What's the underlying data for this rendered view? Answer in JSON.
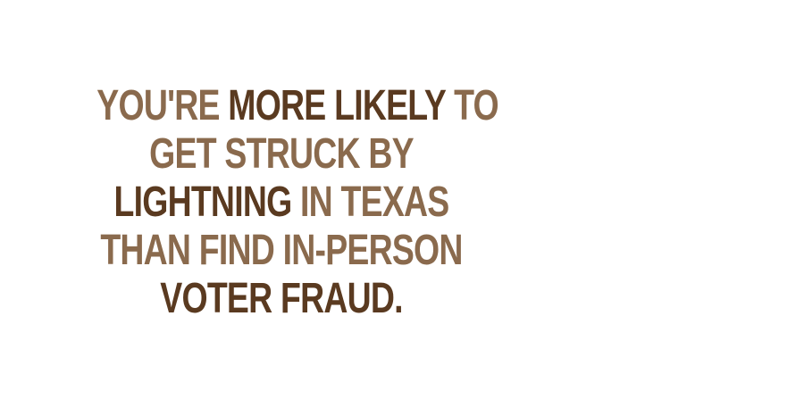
{
  "colors": {
    "light_brown": "#8a6a4d",
    "dark_brown": "#5a3a20",
    "background": "#ffffff"
  },
  "quote": {
    "line1": {
      "part1": "YOU'RE ",
      "part2": "MORE LIKELY",
      "part3": " TO"
    },
    "line2": {
      "part1": "GET STRUCK BY"
    },
    "line3": {
      "part1": "LIGHTNING",
      "part2": " IN TEXAS"
    },
    "line4": {
      "part1": "THAN FIND IN-PERSON"
    },
    "line5": {
      "part1": "VOTER FRAUD."
    }
  }
}
